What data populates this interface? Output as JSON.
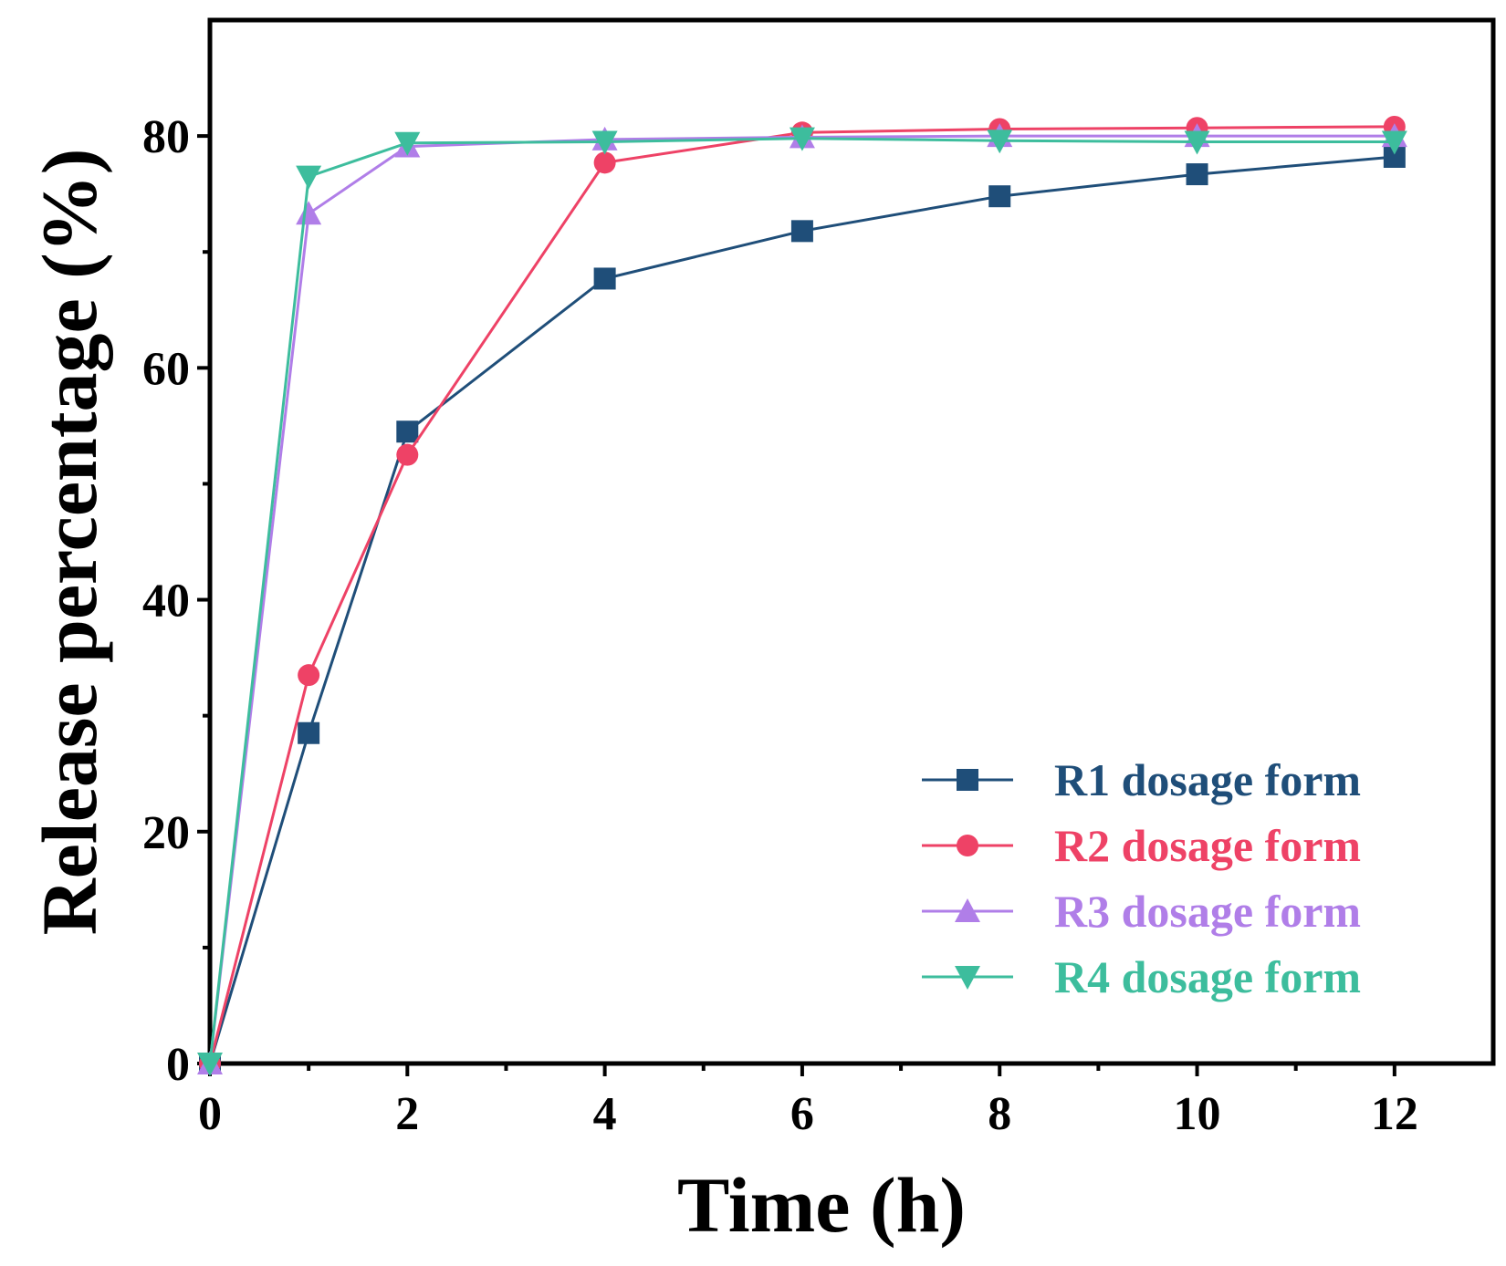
{
  "chart_data": {
    "type": "line",
    "title": "",
    "xlabel": "Time (h)",
    "ylabel": "Release percentage (%)",
    "xlim": [
      0,
      13
    ],
    "ylim": [
      0,
      90
    ],
    "xticks": [
      0,
      2,
      4,
      6,
      8,
      10,
      12
    ],
    "xtick_labels": [
      "0",
      "2",
      "4",
      "6",
      "8",
      "10",
      "12"
    ],
    "xminor": [
      1,
      3,
      5,
      7,
      9,
      11
    ],
    "yticks": [
      0,
      20,
      40,
      60,
      80
    ],
    "ytick_labels": [
      "0",
      "20",
      "40",
      "60",
      "80"
    ],
    "yminor": [
      10,
      30,
      50,
      70
    ],
    "grid": false,
    "legend_position": "bottom-right",
    "x": [
      0,
      1,
      2,
      4,
      6,
      8,
      10,
      12
    ],
    "series": [
      {
        "name": "R1 dosage form",
        "marker": "square",
        "color": "#1f4e79",
        "values": [
          0,
          28.5,
          54.5,
          67.7,
          71.8,
          74.8,
          76.7,
          78.2
        ]
      },
      {
        "name": "R2 dosage form",
        "marker": "circle",
        "color": "#ee4266",
        "values": [
          0,
          33.5,
          52.5,
          77.7,
          80.3,
          80.6,
          80.7,
          80.8
        ]
      },
      {
        "name": "R3 dosage form",
        "marker": "triangle-up",
        "color": "#b07ee8",
        "values": [
          0,
          73.3,
          79.1,
          79.7,
          79.9,
          80.0,
          80.0,
          80.0
        ]
      },
      {
        "name": "R4 dosage form",
        "marker": "triangle-down",
        "color": "#3dbd9d",
        "values": [
          0,
          76.5,
          79.4,
          79.5,
          79.8,
          79.6,
          79.5,
          79.5
        ]
      }
    ]
  }
}
